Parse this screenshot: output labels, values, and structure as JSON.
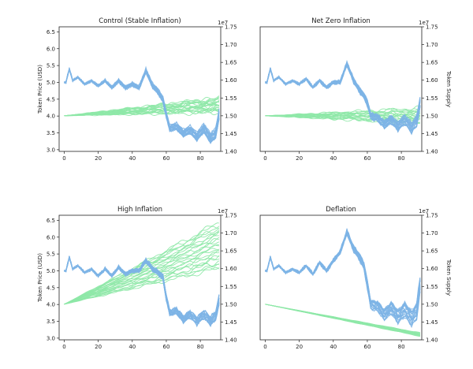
{
  "palette": {
    "price": "#7db4e6",
    "supply": "#8ee8a8"
  },
  "chart_data": [
    {
      "type": "line",
      "title": "Control (Stable Inflation)",
      "ylabel_left": "Token Price (USD)",
      "ylabel_right": "",
      "right_axis_exponent": "1e7",
      "xlim": [
        -3,
        92
      ],
      "ylim_left": [
        2.95,
        6.65
      ],
      "ylim_right": [
        1.4,
        1.75
      ],
      "x_ticks": [
        0,
        20,
        40,
        60,
        80
      ],
      "y_ticks_left": [
        "3.0",
        "3.5",
        "4.0",
        "4.5",
        "5.0",
        "5.5",
        "6.0",
        "6.5"
      ],
      "y_ticks_right": [
        "1.40",
        "1.45",
        "1.50",
        "1.55",
        "1.60",
        "1.65",
        "1.70",
        "1.75"
      ],
      "price_anchors": [
        [
          0,
          5.0
        ],
        [
          1,
          5.0
        ],
        [
          3,
          5.4
        ],
        [
          5,
          5.05
        ],
        [
          8,
          5.15
        ],
        [
          12,
          4.95
        ],
        [
          16,
          5.05
        ],
        [
          20,
          4.9
        ],
        [
          24,
          5.05
        ],
        [
          28,
          4.85
        ],
        [
          32,
          5.05
        ],
        [
          36,
          4.85
        ],
        [
          40,
          4.95
        ],
        [
          44,
          4.85
        ],
        [
          48,
          5.35
        ],
        [
          52,
          4.9
        ],
        [
          55,
          4.75
        ],
        [
          58,
          4.5
        ],
        [
          60,
          4.05
        ],
        [
          62,
          3.65
        ],
        [
          66,
          3.7
        ],
        [
          70,
          3.5
        ],
        [
          74,
          3.6
        ],
        [
          78,
          3.4
        ],
        [
          82,
          3.65
        ],
        [
          86,
          3.35
        ],
        [
          89,
          3.5
        ],
        [
          91,
          4.05
        ]
      ],
      "price_spread": [
        0,
        0.05,
        0.15
      ],
      "supply_start": 1.5,
      "supply_end_min": 1.51,
      "supply_end_max": 1.55,
      "supply_count": 22,
      "supply_style": "wobble"
    },
    {
      "type": "line",
      "title": "Net Zero Inflation",
      "ylabel_left": "",
      "ylabel_right": "Token Supply",
      "right_axis_exponent": "1e7",
      "xlim": [
        -3,
        92
      ],
      "ylim_left": [
        2.95,
        6.65
      ],
      "ylim_right": [
        1.4,
        1.75
      ],
      "x_ticks": [
        0,
        20,
        40,
        60,
        80
      ],
      "y_ticks_left": [],
      "y_ticks_right": [
        "1.40",
        "1.45",
        "1.50",
        "1.55",
        "1.60",
        "1.65",
        "1.70",
        "1.75"
      ],
      "price_anchors": [
        [
          0,
          5.0
        ],
        [
          1,
          5.0
        ],
        [
          3,
          5.4
        ],
        [
          5,
          5.05
        ],
        [
          8,
          5.15
        ],
        [
          12,
          4.95
        ],
        [
          16,
          5.05
        ],
        [
          20,
          4.95
        ],
        [
          24,
          5.1
        ],
        [
          28,
          4.85
        ],
        [
          32,
          5.05
        ],
        [
          36,
          4.85
        ],
        [
          40,
          5.0
        ],
        [
          44,
          5.0
        ],
        [
          48,
          5.55
        ],
        [
          52,
          5.05
        ],
        [
          55,
          4.8
        ],
        [
          58,
          4.6
        ],
        [
          60,
          4.4
        ],
        [
          62,
          4.0
        ],
        [
          66,
          3.95
        ],
        [
          70,
          3.75
        ],
        [
          74,
          3.9
        ],
        [
          78,
          3.7
        ],
        [
          82,
          3.9
        ],
        [
          86,
          3.65
        ],
        [
          89,
          3.85
        ],
        [
          91,
          4.4
        ]
      ],
      "price_spread": [
        0,
        0.05,
        0.18
      ],
      "supply_start": 1.5,
      "supply_end_min": 1.48,
      "supply_end_max": 1.52,
      "supply_count": 18,
      "supply_style": "wobble"
    },
    {
      "type": "line",
      "title": "High Inflation",
      "ylabel_left": "Token Price (USD)",
      "ylabel_right": "",
      "right_axis_exponent": "1e7",
      "xlim": [
        -3,
        92
      ],
      "ylim_left": [
        2.95,
        6.65
      ],
      "ylim_right": [
        1.4,
        1.75
      ],
      "x_ticks": [
        0,
        20,
        40,
        60,
        80
      ],
      "y_ticks_left": [
        "3.0",
        "3.5",
        "4.0",
        "4.5",
        "5.0",
        "5.5",
        "6.0",
        "6.5"
      ],
      "y_ticks_right": [
        "1.40",
        "1.45",
        "1.50",
        "1.55",
        "1.60",
        "1.65",
        "1.70",
        "1.75"
      ],
      "price_anchors": [
        [
          0,
          5.0
        ],
        [
          1,
          5.0
        ],
        [
          3,
          5.4
        ],
        [
          5,
          5.05
        ],
        [
          8,
          5.15
        ],
        [
          12,
          4.95
        ],
        [
          16,
          5.05
        ],
        [
          20,
          4.85
        ],
        [
          24,
          5.05
        ],
        [
          28,
          4.85
        ],
        [
          32,
          5.1
        ],
        [
          36,
          4.9
        ],
        [
          40,
          5.0
        ],
        [
          44,
          5.0
        ],
        [
          48,
          5.3
        ],
        [
          52,
          5.05
        ],
        [
          55,
          4.95
        ],
        [
          58,
          4.8
        ],
        [
          60,
          4.2
        ],
        [
          62,
          3.75
        ],
        [
          66,
          3.8
        ],
        [
          70,
          3.55
        ],
        [
          74,
          3.7
        ],
        [
          78,
          3.5
        ],
        [
          82,
          3.7
        ],
        [
          86,
          3.5
        ],
        [
          89,
          3.65
        ],
        [
          91,
          4.1
        ]
      ],
      "price_spread": [
        0,
        0.05,
        0.15
      ],
      "supply_start": 1.5,
      "supply_end_min": 1.6,
      "supply_end_max": 1.73,
      "supply_count": 25,
      "supply_style": "wobble"
    },
    {
      "type": "line",
      "title": "Deflation",
      "ylabel_left": "",
      "ylabel_right": "Token Supply",
      "right_axis_exponent": "1e7",
      "xlim": [
        -3,
        92
      ],
      "ylim_left": [
        2.95,
        6.65
      ],
      "ylim_right": [
        1.4,
        1.75
      ],
      "x_ticks": [
        0,
        20,
        40,
        60,
        80
      ],
      "y_ticks_left": [],
      "y_ticks_right": [
        "1.40",
        "1.45",
        "1.50",
        "1.55",
        "1.60",
        "1.65",
        "1.70",
        "1.75"
      ],
      "price_anchors": [
        [
          0,
          5.0
        ],
        [
          1,
          5.0
        ],
        [
          3,
          5.4
        ],
        [
          5,
          5.05
        ],
        [
          8,
          5.15
        ],
        [
          12,
          4.95
        ],
        [
          16,
          5.05
        ],
        [
          20,
          4.95
        ],
        [
          24,
          5.15
        ],
        [
          28,
          4.9
        ],
        [
          32,
          5.25
        ],
        [
          36,
          5.0
        ],
        [
          40,
          5.3
        ],
        [
          44,
          5.55
        ],
        [
          48,
          6.15
        ],
        [
          52,
          5.65
        ],
        [
          55,
          5.45
        ],
        [
          58,
          5.15
        ],
        [
          60,
          4.6
        ],
        [
          62,
          4.0
        ],
        [
          66,
          3.95
        ],
        [
          70,
          3.7
        ],
        [
          74,
          3.9
        ],
        [
          78,
          3.65
        ],
        [
          82,
          3.85
        ],
        [
          86,
          3.6
        ],
        [
          89,
          3.8
        ],
        [
          91,
          4.6
        ]
      ],
      "price_spread": [
        0,
        0.05,
        0.25
      ],
      "supply_start": 1.5,
      "supply_end_min": 1.41,
      "supply_end_max": 1.42,
      "supply_count": 14,
      "supply_style": "straight"
    }
  ]
}
